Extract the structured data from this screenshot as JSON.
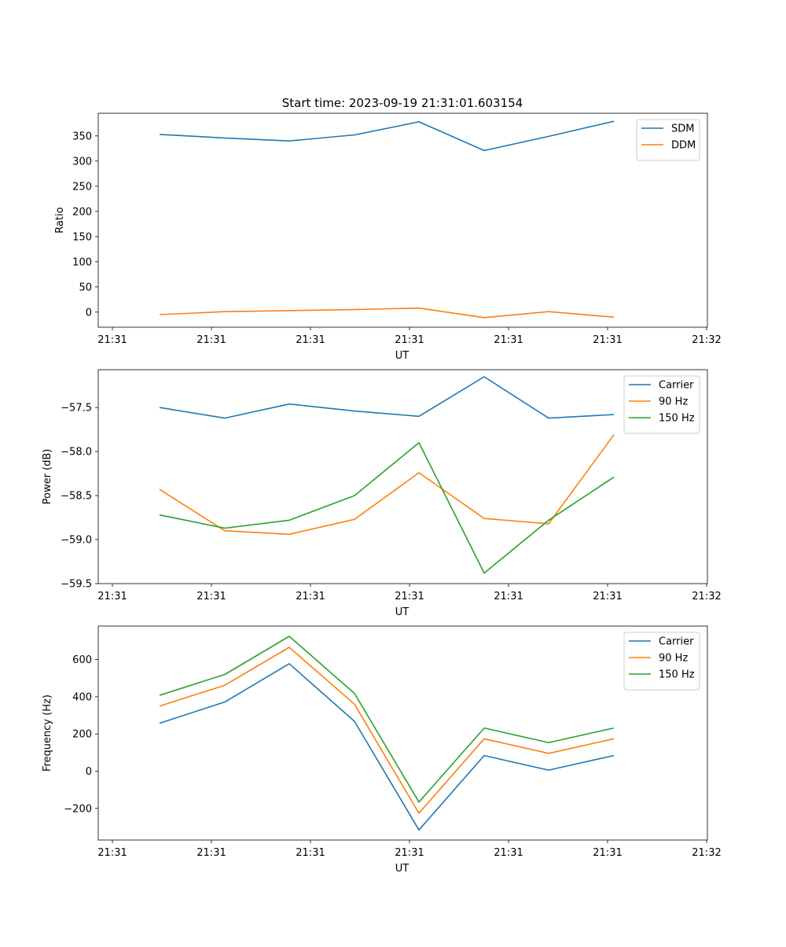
{
  "figure_title": "Start time: 2023-09-19 21:31:01.603154",
  "colors": {
    "blue": "#1f77b4",
    "orange": "#ff7f0e",
    "green": "#2ca02c"
  },
  "chart_data": [
    {
      "type": "line",
      "title": "Start time: 2023-09-19 21:31:01.603154",
      "xlabel": "UT",
      "ylabel": "Ratio",
      "x_ticklabels": [
        "21:31",
        "21:31",
        "21:31",
        "21:31",
        "21:31",
        "21:31",
        "21:32"
      ],
      "y_ticks": [
        0,
        50,
        100,
        150,
        200,
        250,
        300,
        350
      ],
      "ylim": [
        -30,
        395
      ],
      "legend": "top-right",
      "series": [
        {
          "name": "SDM",
          "color": "#1f77b4",
          "values": [
            353,
            346,
            340,
            352,
            378,
            321,
            349,
            379
          ]
        },
        {
          "name": "DDM",
          "color": "#ff7f0e",
          "values": [
            -5,
            1,
            3,
            5,
            8,
            -11,
            1,
            -10
          ]
        }
      ]
    },
    {
      "type": "line",
      "title": "",
      "xlabel": "UT",
      "ylabel": "Power (dB)",
      "x_ticklabels": [
        "21:31",
        "21:31",
        "21:31",
        "21:31",
        "21:31",
        "21:31",
        "21:32"
      ],
      "y_ticks": [
        -59.5,
        -59.0,
        -58.5,
        -58.0,
        -57.5
      ],
      "y_ticklabels": [
        "−59.5",
        "−59.0",
        "−58.5",
        "−58.0",
        "−57.5"
      ],
      "ylim": [
        -59.5,
        -57.07
      ],
      "legend": "top-right",
      "series": [
        {
          "name": "Carrier",
          "color": "#1f77b4",
          "values": [
            -57.5,
            -57.62,
            -57.46,
            -57.54,
            -57.6,
            -57.15,
            -57.62,
            -57.58
          ]
        },
        {
          "name": "90 Hz",
          "color": "#ff7f0e",
          "values": [
            -58.43,
            -58.9,
            -58.94,
            -58.77,
            -58.24,
            -58.76,
            -58.82,
            -57.81
          ]
        },
        {
          "name": "150 Hz",
          "color": "#2ca02c",
          "values": [
            -58.72,
            -58.87,
            -58.78,
            -58.5,
            -57.9,
            -59.38,
            -58.78,
            -58.29
          ]
        }
      ]
    },
    {
      "type": "line",
      "title": "",
      "xlabel": "UT",
      "ylabel": "Frequency (Hz)",
      "x_ticklabels": [
        "21:31",
        "21:31",
        "21:31",
        "21:31",
        "21:31",
        "21:31",
        "21:32"
      ],
      "y_ticks": [
        -200,
        0,
        200,
        400,
        600
      ],
      "y_ticklabels": [
        "−200",
        "0",
        "200",
        "400",
        "600"
      ],
      "ylim": [
        -370,
        780
      ],
      "legend": "top-right",
      "series": [
        {
          "name": "Carrier",
          "color": "#1f77b4",
          "values": [
            258,
            372,
            578,
            268,
            -316,
            84,
            6,
            84
          ]
        },
        {
          "name": "90 Hz",
          "color": "#ff7f0e",
          "values": [
            350,
            462,
            666,
            360,
            -226,
            174,
            96,
            174
          ]
        },
        {
          "name": "150 Hz",
          "color": "#2ca02c",
          "values": [
            408,
            520,
            725,
            418,
            -166,
            232,
            154,
            232
          ]
        }
      ]
    }
  ]
}
